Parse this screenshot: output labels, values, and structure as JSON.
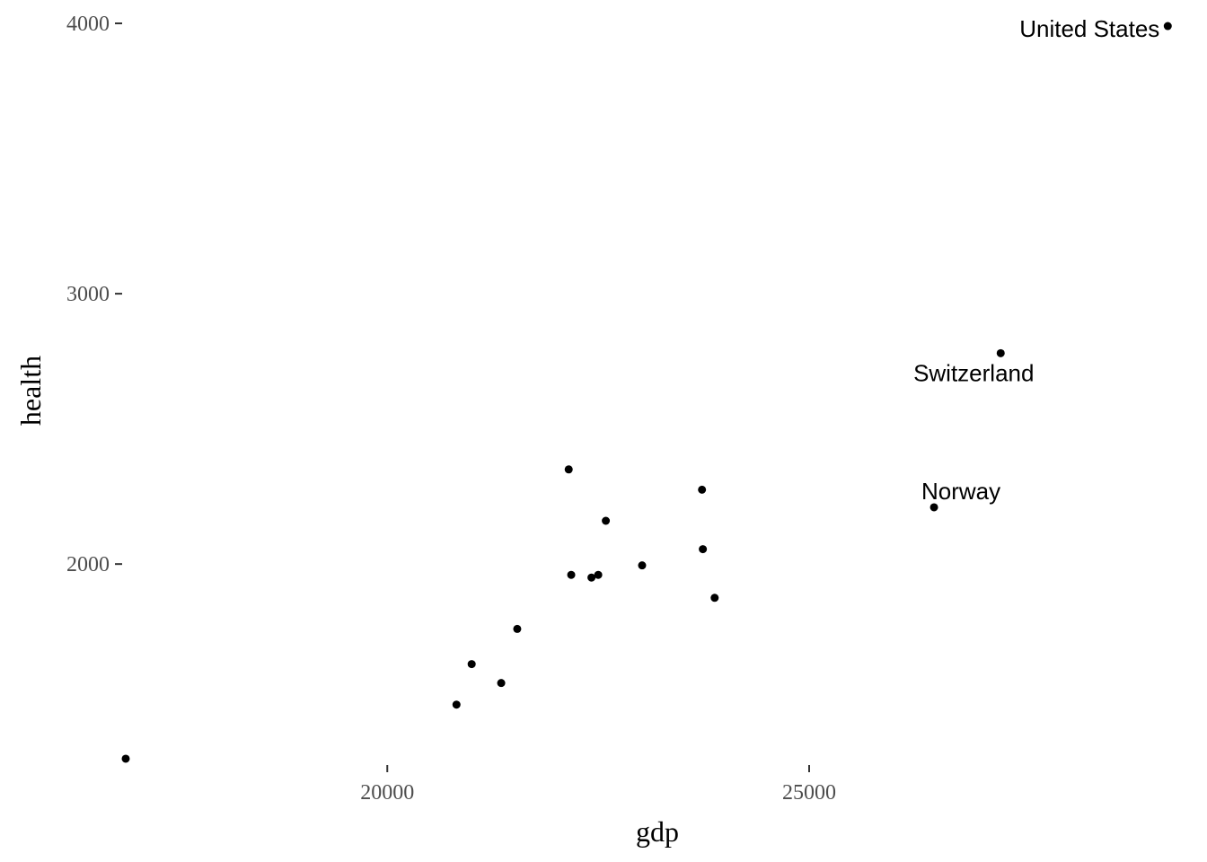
{
  "chart_data": {
    "type": "scatter",
    "title": "",
    "xlabel": "gdp",
    "ylabel": "health",
    "xlim": [
      16900,
      29300
    ],
    "ylim": [
      1230,
      4020
    ],
    "x_ticks": [
      20000,
      25000
    ],
    "y_ticks": [
      2000,
      3000,
      4000
    ],
    "grid": false,
    "legend": "none",
    "point_color": "#000000",
    "points": [
      {
        "x": 16900,
        "y": 1280,
        "label": ""
      },
      {
        "x": 20820,
        "y": 1480,
        "label": ""
      },
      {
        "x": 21000,
        "y": 1630,
        "label": ""
      },
      {
        "x": 21350,
        "y": 1560,
        "label": ""
      },
      {
        "x": 21540,
        "y": 1760,
        "label": ""
      },
      {
        "x": 22150,
        "y": 2350,
        "label": ""
      },
      {
        "x": 22180,
        "y": 1960,
        "label": ""
      },
      {
        "x": 22420,
        "y": 1950,
        "label": ""
      },
      {
        "x": 22500,
        "y": 1960,
        "label": ""
      },
      {
        "x": 22590,
        "y": 2160,
        "label": ""
      },
      {
        "x": 23020,
        "y": 1995,
        "label": ""
      },
      {
        "x": 23730,
        "y": 2275,
        "label": ""
      },
      {
        "x": 23740,
        "y": 2055,
        "label": ""
      },
      {
        "x": 23880,
        "y": 1875,
        "label": ""
      },
      {
        "x": 26480,
        "y": 2210,
        "label": "Norway",
        "label_pos": "above"
      },
      {
        "x": 27270,
        "y": 2780,
        "label": "Switzerland",
        "label_pos": "below"
      },
      {
        "x": 29250,
        "y": 3990,
        "label": "United States",
        "label_pos": "left"
      }
    ]
  }
}
